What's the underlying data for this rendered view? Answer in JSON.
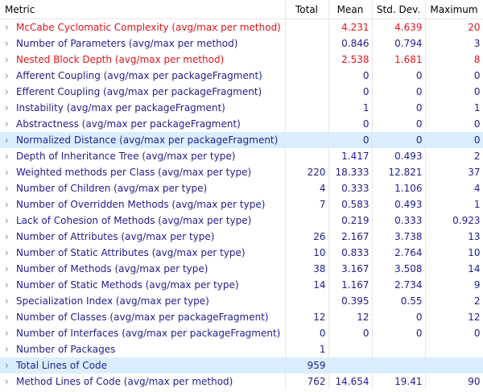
{
  "headers": {
    "metric": "Metric",
    "total": "Total",
    "mean": "Mean",
    "std": "Std. Dev.",
    "max": "Maximum"
  },
  "rows": [
    {
      "metric": "McCabe Cyclomatic Complexity (avg/max per method)",
      "total": "",
      "mean": "4.231",
      "std": "4.639",
      "max": "20",
      "red": true
    },
    {
      "metric": "Number of Parameters (avg/max per method)",
      "total": "",
      "mean": "0.846",
      "std": "0.794",
      "max": "3"
    },
    {
      "metric": "Nested Block Depth (avg/max per method)",
      "total": "",
      "mean": "2.538",
      "std": "1.681",
      "max": "8",
      "red": true
    },
    {
      "metric": "Afferent Coupling (avg/max per packageFragment)",
      "total": "",
      "mean": "0",
      "std": "0",
      "max": "0"
    },
    {
      "metric": "Efferent Coupling (avg/max per packageFragment)",
      "total": "",
      "mean": "0",
      "std": "0",
      "max": "0"
    },
    {
      "metric": "Instability (avg/max per packageFragment)",
      "total": "",
      "mean": "1",
      "std": "0",
      "max": "1"
    },
    {
      "metric": "Abstractness (avg/max per packageFragment)",
      "total": "",
      "mean": "0",
      "std": "0",
      "max": "0"
    },
    {
      "metric": "Normalized Distance (avg/max per packageFragment)",
      "total": "",
      "mean": "0",
      "std": "0",
      "max": "0",
      "highlight": true
    },
    {
      "metric": "Depth of Inheritance Tree (avg/max per type)",
      "total": "",
      "mean": "1.417",
      "std": "0.493",
      "max": "2"
    },
    {
      "metric": "Weighted methods per Class (avg/max per type)",
      "total": "220",
      "mean": "18.333",
      "std": "12.821",
      "max": "37"
    },
    {
      "metric": "Number of Children (avg/max per type)",
      "total": "4",
      "mean": "0.333",
      "std": "1.106",
      "max": "4"
    },
    {
      "metric": "Number of Overridden Methods (avg/max per type)",
      "total": "7",
      "mean": "0.583",
      "std": "0.493",
      "max": "1"
    },
    {
      "metric": "Lack of Cohesion of Methods (avg/max per type)",
      "total": "",
      "mean": "0.219",
      "std": "0.333",
      "max": "0.923"
    },
    {
      "metric": "Number of Attributes (avg/max per type)",
      "total": "26",
      "mean": "2.167",
      "std": "3.738",
      "max": "13"
    },
    {
      "metric": "Number of Static Attributes (avg/max per type)",
      "total": "10",
      "mean": "0.833",
      "std": "2.764",
      "max": "10"
    },
    {
      "metric": "Number of Methods (avg/max per type)",
      "total": "38",
      "mean": "3.167",
      "std": "3.508",
      "max": "14"
    },
    {
      "metric": "Number of Static Methods (avg/max per type)",
      "total": "14",
      "mean": "1.167",
      "std": "2.734",
      "max": "9"
    },
    {
      "metric": "Specialization Index (avg/max per type)",
      "total": "",
      "mean": "0.395",
      "std": "0.55",
      "max": "2"
    },
    {
      "metric": "Number of Classes (avg/max per packageFragment)",
      "total": "12",
      "mean": "12",
      "std": "0",
      "max": "12"
    },
    {
      "metric": "Number of Interfaces (avg/max per packageFragment)",
      "total": "0",
      "mean": "0",
      "std": "0",
      "max": "0"
    },
    {
      "metric": "Number of Packages",
      "total": "1",
      "mean": "",
      "std": "",
      "max": ""
    },
    {
      "metric": "Total Lines of Code",
      "total": "959",
      "mean": "",
      "std": "",
      "max": "",
      "highlight": true
    },
    {
      "metric": "Method Lines of Code (avg/max per method)",
      "total": "762",
      "mean": "14.654",
      "std": "19.41",
      "max": "90"
    }
  ],
  "colors": {
    "text": "#1f1f8f",
    "warning": "#e0161d",
    "selection": "#dbeeff"
  },
  "icons": {
    "expand": "chevron-right-icon"
  }
}
